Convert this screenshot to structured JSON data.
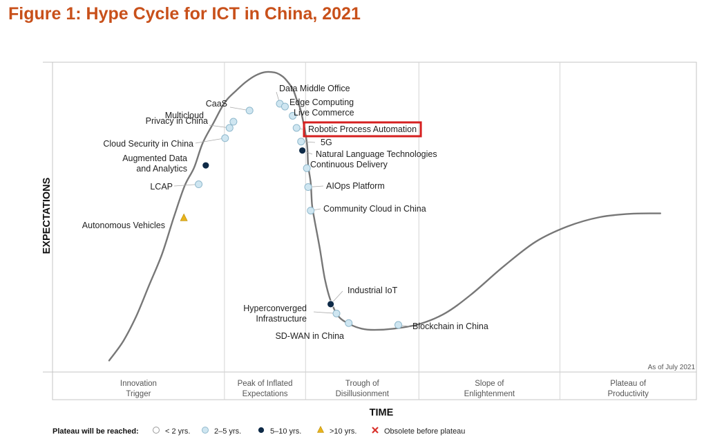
{
  "title": "Figure 1: Hype Cycle for ICT in China, 2021",
  "chart_data": {
    "type": "line",
    "title": "Figure 1: Hype Cycle for ICT in China, 2021",
    "xlabel": "TIME",
    "ylabel": "EXPECTATIONS",
    "xlim": [
      0,
      100
    ],
    "ylim": [
      0,
      100
    ],
    "as_of": "As of July 2021",
    "phases": [
      {
        "name": "Innovation Trigger",
        "lines": [
          "Innovation",
          "Trigger"
        ],
        "start": 0,
        "end": 26.7
      },
      {
        "name": "Peak of Inflated Expectations",
        "lines": [
          "Peak of Inflated",
          "Expectations"
        ],
        "start": 26.7,
        "end": 39.3
      },
      {
        "name": "Trough of Disillusionment",
        "lines": [
          "Trough of",
          "Disillusionment"
        ],
        "start": 39.3,
        "end": 56.9
      },
      {
        "name": "Slope of Enlightenment",
        "lines": [
          "Slope of",
          "Enlightenment"
        ],
        "start": 56.9,
        "end": 78.8
      },
      {
        "name": "Plateau of Productivity",
        "lines": [
          "Plateau of",
          "Productivity"
        ],
        "start": 78.8,
        "end": 100
      }
    ],
    "curve": {
      "x": [
        8.8,
        11,
        13,
        15,
        17,
        18.8,
        20.5,
        22,
        23.3,
        25,
        26.3,
        27.2,
        28.5,
        30,
        31.5,
        33,
        34.5,
        35.3,
        36.1,
        37.3,
        37.9,
        38.6,
        39.5,
        39.7,
        40.1,
        40.3,
        40.7,
        41.5,
        42.3,
        43.2,
        44.4,
        46,
        48,
        50,
        53,
        57,
        61,
        65,
        70,
        75,
        80,
        85,
        90,
        94.4
      ],
      "y": [
        3.7,
        10,
        18,
        28,
        38,
        49.7,
        60,
        66,
        73.8,
        80.4,
        85.5,
        88.2,
        90.8,
        93.6,
        95.7,
        96.8,
        96.7,
        96,
        94.7,
        91.4,
        88.1,
        84,
        74.1,
        66.8,
        61.1,
        54.1,
        49,
        40,
        30,
        23,
        18,
        15.6,
        14,
        13.6,
        14,
        15.5,
        19,
        25,
        34,
        42,
        47,
        50,
        51.1,
        51.2
      ]
    },
    "technologies": [
      {
        "name": "Autonomous Vehicles",
        "x": 20.4,
        "y": 49.7,
        "plateau": ">10 yrs.",
        "label_lines": [
          "Autonomous Vehicles"
        ]
      },
      {
        "name": "LCAP",
        "x": 22.7,
        "y": 60.6,
        "plateau": "2–5 yrs.",
        "label_lines": [
          "LCAP"
        ]
      },
      {
        "name": "Augmented Data and Analytics",
        "x": 23.8,
        "y": 66.7,
        "plateau": "5–10 yrs.",
        "label_lines": [
          "Augmented Data",
          "and Analytics"
        ]
      },
      {
        "name": "Cloud Security in China",
        "x": 26.8,
        "y": 75.5,
        "plateau": "2–5 yrs.",
        "label_lines": [
          "Cloud Security in China"
        ]
      },
      {
        "name": "Privacy in China",
        "x": 27.5,
        "y": 78.8,
        "plateau": "2–5 yrs.",
        "label_lines": [
          "Privacy in China"
        ]
      },
      {
        "name": "Multicloud",
        "x": 28.1,
        "y": 80.8,
        "plateau": "2–5 yrs.",
        "label_lines": [
          "Multicloud"
        ]
      },
      {
        "name": "CaaS",
        "x": 30.6,
        "y": 84.4,
        "plateau": "2–5 yrs.",
        "label_lines": [
          "CaaS"
        ]
      },
      {
        "name": "Data Middle Office",
        "x": 35.3,
        "y": 86.6,
        "plateau": "2–5 yrs.",
        "label_lines": [
          "Data Middle Office"
        ]
      },
      {
        "name": "Edge Computing",
        "x": 36.1,
        "y": 85.7,
        "plateau": "2–5 yrs.",
        "label_lines": [
          "Edge Computing"
        ]
      },
      {
        "name": "Live Commerce",
        "x": 37.3,
        "y": 82.7,
        "plateau": "2–5 yrs.",
        "label_lines": [
          "Live Commerce"
        ]
      },
      {
        "name": "Robotic Process Automation",
        "x": 37.9,
        "y": 78.8,
        "plateau": "2–5 yrs.",
        "label_lines": [
          "Robotic Process Automation"
        ],
        "highlight": true
      },
      {
        "name": "5G",
        "x": 38.6,
        "y": 74.4,
        "plateau": "2–5 yrs.",
        "label_lines": [
          "5G"
        ]
      },
      {
        "name": "Natural Language Technologies",
        "x": 38.8,
        "y": 71.5,
        "plateau": "5–10 yrs.",
        "label_lines": [
          "Natural Language Technologies"
        ]
      },
      {
        "name": "Continuous Delivery",
        "x": 39.5,
        "y": 65.8,
        "plateau": "2–5 yrs.",
        "label_lines": [
          "Continuous Delivery"
        ]
      },
      {
        "name": "AIOps Platform",
        "x": 39.7,
        "y": 59.7,
        "plateau": "2–5 yrs.",
        "label_lines": [
          "AIOps Platform"
        ]
      },
      {
        "name": "Community Cloud in China",
        "x": 40.1,
        "y": 52.1,
        "plateau": "2–5 yrs.",
        "label_lines": [
          "Community Cloud in China"
        ]
      },
      {
        "name": "Industrial IoT",
        "x": 43.2,
        "y": 21.9,
        "plateau": "5–10 yrs.",
        "label_lines": [
          "Industrial IoT"
        ]
      },
      {
        "name": "Hyperconverged Infrastructure",
        "x": 44.1,
        "y": 18.9,
        "plateau": "2–5 yrs.",
        "label_lines": [
          "Hyperconverged",
          "Infrastructure"
        ]
      },
      {
        "name": "SD-WAN in China",
        "x": 46.0,
        "y": 15.8,
        "plateau": "2–5 yrs.",
        "label_lines": [
          "SD-WAN in China"
        ]
      },
      {
        "name": "Blockchain in China",
        "x": 53.7,
        "y": 15.2,
        "plateau": "2–5 yrs.",
        "label_lines": [
          "Blockchain in China"
        ]
      }
    ],
    "legend": {
      "title": "Plateau will be reached:",
      "items": [
        {
          "label": "< 2 yrs.",
          "marker": "circle-white"
        },
        {
          "label": "2–5 yrs.",
          "marker": "circle-light"
        },
        {
          "label": "5–10 yrs.",
          "marker": "circle-dark"
        },
        {
          "label": ">10 yrs.",
          "marker": "triangle"
        },
        {
          "label": "Obsolete before plateau",
          "marker": "x"
        }
      ]
    }
  },
  "colors": {
    "title": "#c8501a",
    "curve": "#777777",
    "light": "#cfe6f1",
    "light_stroke": "#8fb8cc",
    "dark": "#0e2a47",
    "triangle": "#e8b31c",
    "obsolete": "#d9322c",
    "highlight": "#d61f1f",
    "grid": "#d4d4d4",
    "frame": "#c4c4c4"
  }
}
